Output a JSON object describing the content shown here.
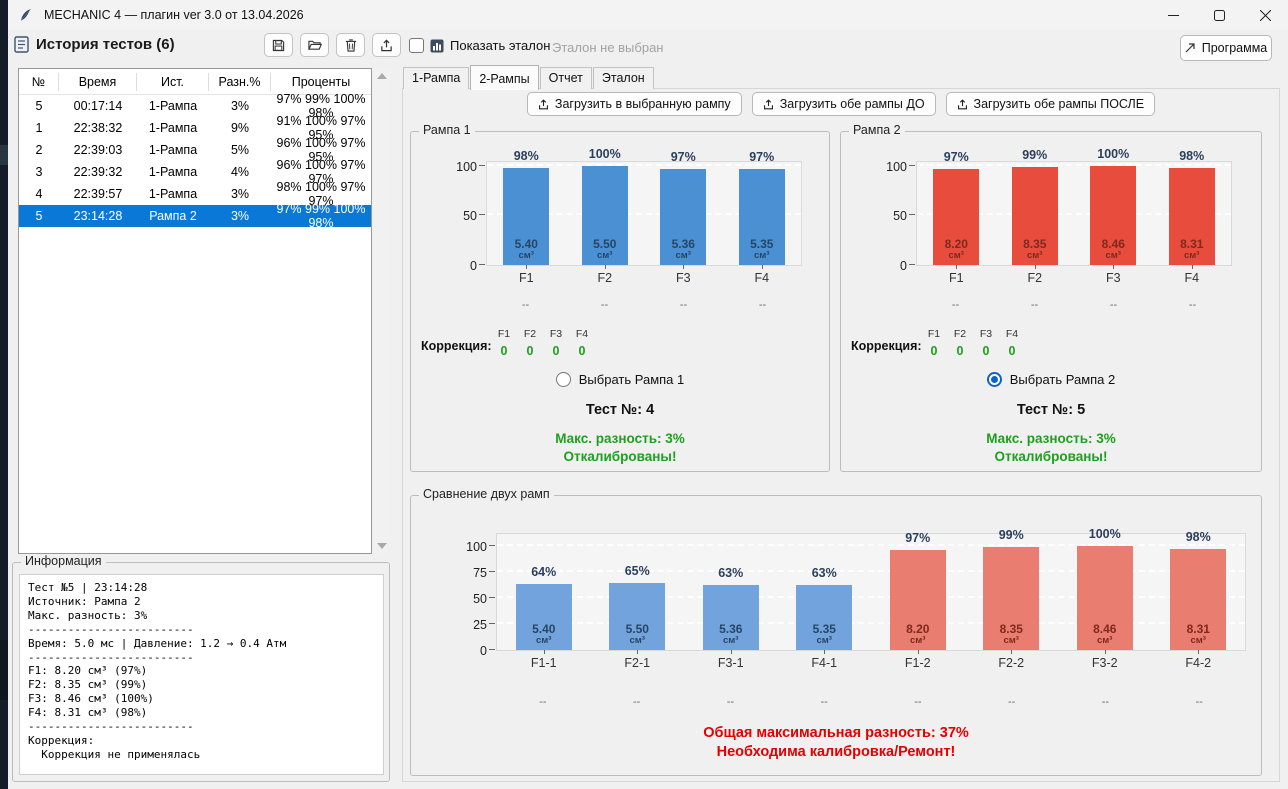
{
  "window": {
    "title": "MECHANIC 4 — плагин ver 3.0 от 13.04.2026",
    "controls": [
      {
        "name": "minimize",
        "icon": "minimize-icon"
      },
      {
        "name": "maximize",
        "icon": "maximize-icon"
      },
      {
        "name": "close",
        "icon": "close-icon"
      }
    ]
  },
  "history": {
    "title": "История тестов (6)",
    "toolbar": [
      {
        "icon": "save-icon"
      },
      {
        "icon": "open-folder-icon"
      },
      {
        "icon": "delete-icon"
      },
      {
        "icon": "export-icon"
      }
    ],
    "columns": [
      "№",
      "Время",
      "Ист.",
      "Разн.%",
      "Проценты"
    ],
    "rows": [
      [
        "5",
        "00:17:14",
        "1-Рампа",
        "3%",
        "97% 99% 100% 98%"
      ],
      [
        "1",
        "22:38:32",
        "1-Рампа",
        "9%",
        "91% 100% 97% 95%"
      ],
      [
        "2",
        "22:39:03",
        "1-Рампа",
        "5%",
        "96% 100% 97% 95%"
      ],
      [
        "3",
        "22:39:32",
        "1-Рампа",
        "4%",
        "96% 100% 97% 97%"
      ],
      [
        "4",
        "22:39:57",
        "1-Рампа",
        "3%",
        "98% 100% 97% 97%"
      ],
      [
        "5",
        "23:14:28",
        "Рампа 2",
        "3%",
        "97% 99% 100% 98%"
      ]
    ],
    "selected_row": 5
  },
  "info": {
    "title": "Информация",
    "lines": [
      "Тест №5 | 23:14:28",
      "Источник: Рампа 2",
      "Макс. разность: 3%",
      "-------------------------",
      "Время: 5.0 мс | Давление: 1.2 → 0.4 Атм",
      "-------------------------",
      "F1: 8.20 см³ (97%)",
      "F2: 8.35 см³ (99%)",
      "F3: 8.46 см³ (100%)",
      "F4: 8.31 см³ (98%)",
      "-------------------------",
      "Коррекция:",
      "  Коррекция не применялась"
    ]
  },
  "etalon_bar": {
    "checkbox_label": "Показать эталон",
    "checkbox_checked": false,
    "status": "Эталон не выбран"
  },
  "program_button": {
    "label": "Программа",
    "icon": "external-link-icon"
  },
  "tabs": {
    "items": [
      "1-Рампа",
      "2-Рампы",
      "Отчет",
      "Эталон"
    ],
    "active": "2-Рампы"
  },
  "load_buttons": [
    {
      "label": "Загрузить в выбранную рампу",
      "icon": "upload-icon"
    },
    {
      "label": "Загрузить обе рампы ДО",
      "icon": "upload-icon"
    },
    {
      "label": "Загрузить обе рампы ПОСЛЕ",
      "icon": "upload-icon"
    }
  ],
  "ramp1": {
    "frame_title": "Рампа 1",
    "correction_label": "Коррекция:",
    "correction_channels": [
      "F1",
      "F2",
      "F3",
      "F4"
    ],
    "correction_values": [
      "0",
      "0",
      "0",
      "0"
    ],
    "placeholders": [
      "--",
      "--",
      "--",
      "--"
    ],
    "radio_label": "Выбрать Рампа 1",
    "radio_selected": false,
    "test_label": "Тест №: 4",
    "diff_label": "Макс. разность: 3%",
    "calibrated_label": "Откалиброваны!"
  },
  "ramp2": {
    "frame_title": "Рампа 2",
    "correction_label": "Коррекция:",
    "correction_channels": [
      "F1",
      "F2",
      "F3",
      "F4"
    ],
    "correction_values": [
      "0",
      "0",
      "0",
      "0"
    ],
    "placeholders": [
      "--",
      "--",
      "--",
      "--"
    ],
    "radio_label": "Выбрать Рампа 2",
    "radio_selected": true,
    "test_label": "Тест №: 5",
    "diff_label": "Макс. разность: 3%",
    "calibrated_label": "Откалиброваны!"
  },
  "comparison": {
    "frame_title": "Сравнение двух рамп",
    "placeholders": [
      "--",
      "--",
      "--",
      "--",
      "--",
      "--",
      "--",
      "--"
    ],
    "total_diff_label": "Общая максимальная разность: 37%",
    "action_label": "Необходима калибровка/Ремонт!"
  },
  "colors": {
    "ramp1_bar": "#4a90d2",
    "ramp2_bar": "#e74c3c",
    "cmp_blue_bar": "#72a3dc",
    "cmp_red_bar": "#e97d70",
    "green_text": "#1da11d",
    "warn_red_text": "#e30000",
    "selection_blue": "#0a78d7",
    "pct_label": "#2b3f5c",
    "vol_on_blue": "#274666",
    "vol_on_red": "#7e2a1d"
  },
  "chart_data": [
    {
      "id": "ramp1",
      "type": "bar",
      "title": "Рампа 1",
      "categories": [
        "F1",
        "F2",
        "F3",
        "F4"
      ],
      "series": [
        {
          "name": "percent",
          "values": [
            98,
            100,
            97,
            97
          ]
        },
        {
          "name": "volume_cm3",
          "values": [
            "5.40",
            "5.50",
            "5.36",
            "5.35"
          ]
        }
      ],
      "volume_unit": "см³",
      "yticks": [
        0,
        50,
        100
      ],
      "ylim": [
        0,
        104
      ],
      "grid": "dashed",
      "bar_colors": [
        "#4a90d2",
        "#4a90d2",
        "#4a90d2",
        "#4a90d2"
      ],
      "vol_colors": [
        "#274666",
        "#274666",
        "#274666",
        "#274666"
      ]
    },
    {
      "id": "ramp2",
      "type": "bar",
      "title": "Рампа 2",
      "categories": [
        "F1",
        "F2",
        "F3",
        "F4"
      ],
      "series": [
        {
          "name": "percent",
          "values": [
            97,
            99,
            100,
            98
          ]
        },
        {
          "name": "volume_cm3",
          "values": [
            "8.20",
            "8.35",
            "8.46",
            "8.31"
          ]
        }
      ],
      "volume_unit": "см³",
      "yticks": [
        0,
        50,
        100
      ],
      "ylim": [
        0,
        104
      ],
      "grid": "dashed",
      "bar_colors": [
        "#e74c3c",
        "#e74c3c",
        "#e74c3c",
        "#e74c3c"
      ],
      "vol_colors": [
        "#7e2a1d",
        "#7e2a1d",
        "#7e2a1d",
        "#7e2a1d"
      ]
    },
    {
      "id": "comparison",
      "type": "bar",
      "title": "Сравнение двух рамп",
      "categories": [
        "F1-1",
        "F2-1",
        "F3-1",
        "F4-1",
        "F1-2",
        "F2-2",
        "F3-2",
        "F4-2"
      ],
      "series": [
        {
          "name": "percent",
          "values": [
            64,
            65,
            63,
            63,
            97,
            99,
            100,
            98
          ]
        },
        {
          "name": "volume_cm3",
          "values": [
            "5.40",
            "5.50",
            "5.36",
            "5.35",
            "8.20",
            "8.35",
            "8.46",
            "8.31"
          ]
        }
      ],
      "volume_unit": "см³",
      "yticks": [
        0,
        25,
        50,
        75,
        100
      ],
      "ylim": [
        0,
        112
      ],
      "grid": "dashed",
      "bar_colors": [
        "#72a3dc",
        "#72a3dc",
        "#72a3dc",
        "#72a3dc",
        "#e97d70",
        "#e97d70",
        "#e97d70",
        "#e97d70"
      ],
      "vol_colors": [
        "#274666",
        "#274666",
        "#274666",
        "#274666",
        "#7e2a1d",
        "#7e2a1d",
        "#7e2a1d",
        "#7e2a1d"
      ]
    }
  ]
}
